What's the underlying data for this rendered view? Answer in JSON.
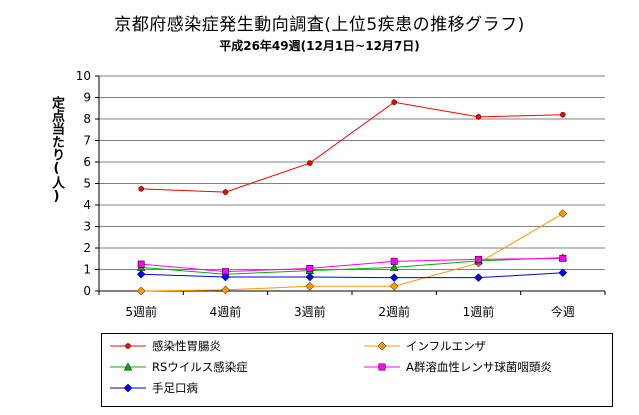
{
  "title": "京都府感染症発生動向調査(上位5疾患の推移グラフ)",
  "subtitle": "平成26年49週(12月1日~12月7日)",
  "chart_data": {
    "type": "line",
    "ylabel": "定点当たり(人)",
    "xlabel": "",
    "categories": [
      "5週前",
      "4週前",
      "3週前",
      "2週前",
      "1週前",
      "今週"
    ],
    "ylim": [
      0,
      10
    ],
    "yticks": [
      "0",
      "1",
      "2",
      "3",
      "4",
      "5",
      "6",
      "7",
      "8",
      "9",
      "10"
    ],
    "grid": "horizontal",
    "legend_position": "bottom",
    "series": [
      {
        "name": "感染性胃腸炎",
        "color": "#ff0000",
        "marker": "circle",
        "values": [
          4.75,
          4.6,
          5.95,
          8.78,
          8.1,
          8.2
        ]
      },
      {
        "name": "インフルエンザ",
        "color": "#ff9900",
        "marker": "diamond",
        "values": [
          0.0,
          0.05,
          0.22,
          0.22,
          1.3,
          3.6
        ]
      },
      {
        "name": "RSウイルス感染症",
        "color": "#00b000",
        "marker": "triangle",
        "values": [
          1.1,
          0.78,
          0.95,
          1.1,
          1.4,
          1.55
        ]
      },
      {
        "name": "A群溶血性レンサ球菌咽頭炎",
        "color": "#ff00ff",
        "marker": "square",
        "values": [
          1.25,
          0.9,
          1.05,
          1.38,
          1.47,
          1.52
        ]
      },
      {
        "name": "手足口病",
        "color": "#0000ff",
        "marker": "diamond",
        "values": [
          0.78,
          0.65,
          0.65,
          0.62,
          0.62,
          0.85
        ]
      }
    ]
  }
}
